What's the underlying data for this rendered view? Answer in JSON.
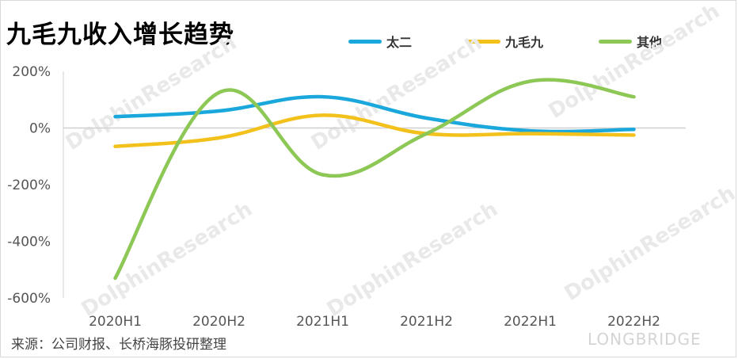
{
  "title": "九毛九收入增长趋势",
  "source": "来源：公司财报、长桥海豚投研整理",
  "brand": "LONGBRIDGE",
  "watermark": "DolphinResearch",
  "chart_data": {
    "type": "line",
    "smooth": true,
    "categories": [
      "2020H1",
      "2020H2",
      "2021H1",
      "2021H2",
      "2022H1",
      "2022H2"
    ],
    "series": [
      {
        "name": "太二",
        "color": "#1aa8dc",
        "values": [
          40,
          60,
          110,
          35,
          -10,
          -5
        ]
      },
      {
        "name": "九毛九",
        "color": "#f2c11c",
        "values": [
          -65,
          -35,
          45,
          -20,
          -20,
          -25
        ]
      },
      {
        "name": "其他",
        "color": "#8dc856",
        "values": [
          -530,
          125,
          -165,
          -20,
          165,
          110
        ]
      }
    ],
    "yticks": [
      200,
      0,
      -200,
      -400,
      -600
    ],
    "ytick_labels": [
      "200%",
      "0%",
      "-200%",
      "-400%",
      "-600%"
    ],
    "ylim": [
      -600,
      200
    ],
    "legend_position": "top-right",
    "grid": false
  }
}
